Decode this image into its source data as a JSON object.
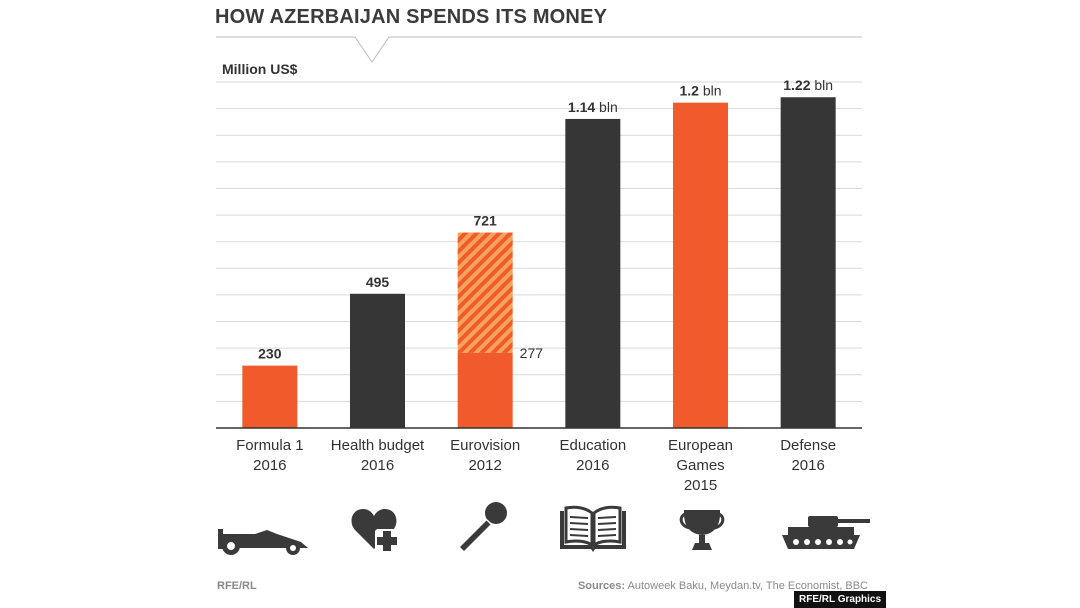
{
  "title": "HOW AZERBAIJAN SPENDS ITS MONEY",
  "footer": {
    "left": "RFE/RL",
    "sources_label": "Sources:",
    "sources_text": "Autoweek Baku, Meydan.tv, The Economist, BBC",
    "credit": "RFE/RL Graphics"
  },
  "colors": {
    "orange": "#f15a2b",
    "dark": "#363636",
    "hatch_light": "#f7a45a",
    "grid": "#d9d9d9",
    "icon": "#3a3a3a"
  },
  "chart_data": {
    "type": "bar",
    "ylabel": "Million US$",
    "ylim": [
      0,
      1350
    ],
    "grid": true,
    "categories": [
      [
        "Formula 1",
        "2016"
      ],
      [
        "Health budget",
        "2016"
      ],
      [
        "Eurovision",
        "2012"
      ],
      [
        "Education",
        "2016"
      ],
      [
        "European",
        "Games",
        "2015"
      ],
      [
        "Defense",
        "2016"
      ]
    ],
    "values": [
      230,
      495,
      721,
      1140,
      1200,
      1220
    ],
    "value_labels": [
      {
        "num": "230",
        "unit": ""
      },
      {
        "num": "495",
        "unit": ""
      },
      {
        "num": "721",
        "unit": ""
      },
      {
        "num": "1.14",
        "unit": " bln"
      },
      {
        "num": "1.2",
        "unit": " bln"
      },
      {
        "num": "1.22",
        "unit": " bln"
      }
    ],
    "bar_colors": [
      "orange",
      "dark",
      "orange",
      "dark",
      "orange",
      "dark"
    ],
    "eurovision_split": {
      "index": 2,
      "solid_value": 277,
      "label": "277"
    }
  },
  "icons": [
    "formula1-car-icon",
    "heart-plus-icon",
    "microphone-icon",
    "open-book-icon",
    "trophy-icon",
    "tank-icon"
  ]
}
